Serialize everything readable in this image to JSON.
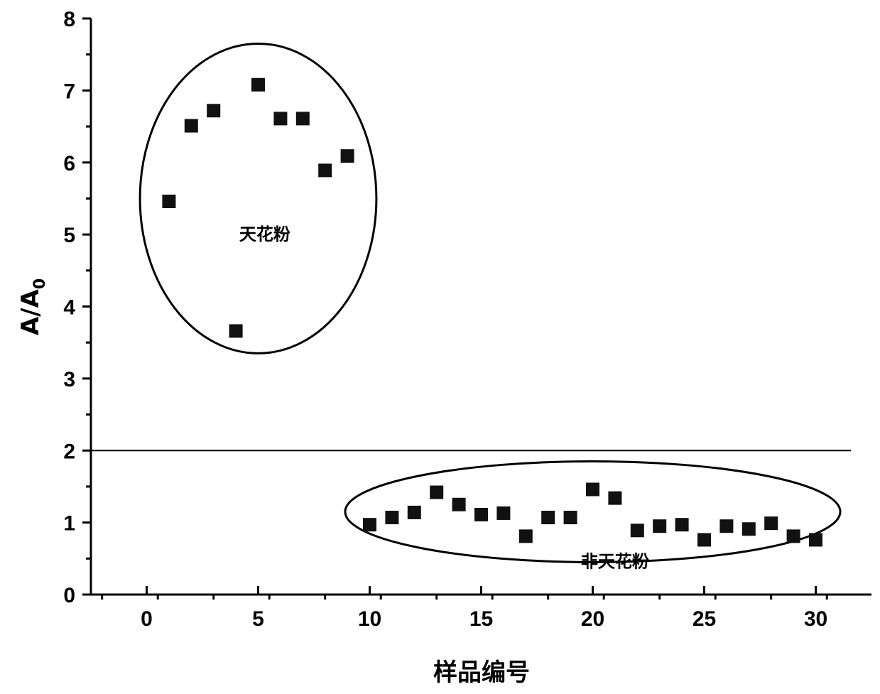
{
  "chart_data": {
    "type": "scatter",
    "title": "",
    "xlabel": "样品编号",
    "ylabel": "A/A",
    "ylabel_subscript": "0",
    "xlim": [
      -2.5,
      32.5
    ],
    "ylim": [
      0,
      8
    ],
    "x_ticks": [
      0,
      5,
      10,
      15,
      20,
      25,
      30
    ],
    "y_ticks": [
      0,
      1,
      2,
      3,
      4,
      5,
      6,
      7,
      8
    ],
    "marker": "square",
    "marker_color": "#111111",
    "threshold_line": {
      "y": 2
    },
    "groups": [
      {
        "label": "天花粉",
        "x_range": [
          1,
          9
        ],
        "y_range": [
          3.5,
          7.5
        ]
      },
      {
        "label": "非天花粉",
        "x_range": [
          10,
          30
        ],
        "y_range": [
          0.5,
          1.8
        ]
      }
    ],
    "x": [
      1,
      2,
      3,
      4,
      5,
      6,
      7,
      8,
      9,
      10,
      11,
      12,
      13,
      14,
      15,
      16,
      17,
      18,
      19,
      20,
      21,
      22,
      23,
      24,
      25,
      26,
      27,
      28,
      29,
      30
    ],
    "y": [
      5.46,
      6.51,
      6.72,
      3.66,
      7.08,
      6.61,
      6.61,
      5.89,
      6.09,
      0.97,
      1.07,
      1.14,
      1.42,
      1.25,
      1.11,
      1.13,
      0.81,
      1.07,
      1.07,
      1.46,
      1.34,
      0.89,
      0.95,
      0.97,
      0.76,
      0.95,
      0.91,
      0.99,
      0.81,
      0.76
    ]
  }
}
